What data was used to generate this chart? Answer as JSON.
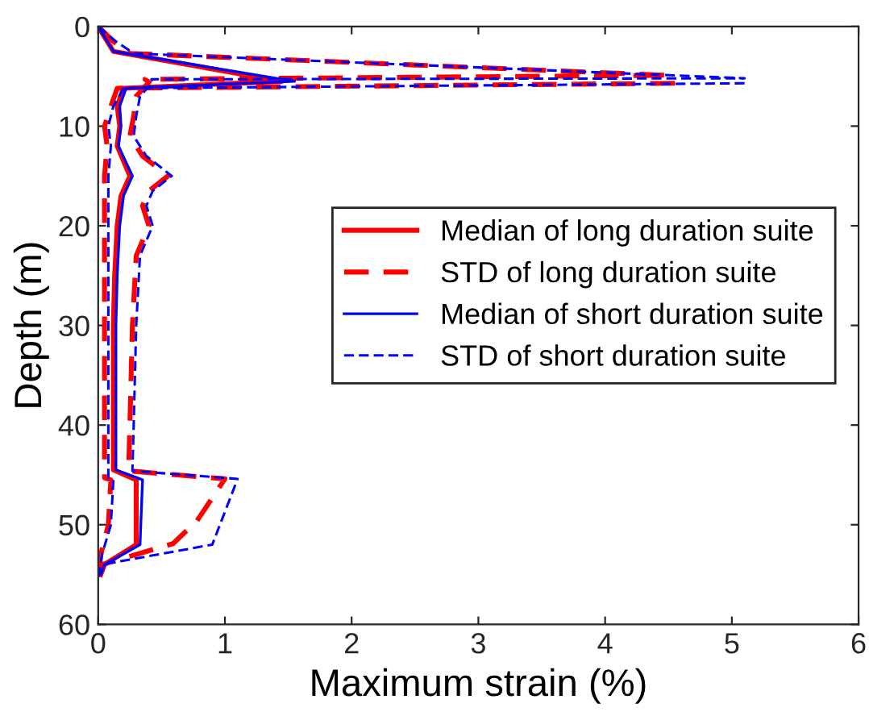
{
  "chart_data": {
    "type": "line",
    "xlabel": "Maximum strain (%)",
    "ylabel": "Depth (m)",
    "xlim": [
      0,
      6
    ],
    "ylim": [
      60,
      0
    ],
    "xticks": [
      0,
      1,
      2,
      3,
      4,
      5,
      6
    ],
    "yticks": [
      0,
      10,
      20,
      30,
      40,
      50,
      60
    ],
    "grid": false,
    "legend": "right",
    "series": [
      {
        "name": "Median of long duration suite",
        "color": "#ff0000",
        "line_style": "solid",
        "x": [
          0,
          0.12,
          1.45,
          0.2,
          0.15,
          0.17,
          0.15,
          0.25,
          0.18,
          0.15,
          0.13,
          0.12,
          0.12,
          0.12,
          0.12,
          0.3,
          0.3,
          0.05,
          0.02
        ],
        "values": [
          0,
          2.5,
          5.5,
          6.2,
          8,
          10,
          12,
          15,
          17,
          20,
          25,
          30,
          35,
          40,
          44.5,
          45.5,
          52,
          54,
          55
        ]
      },
      {
        "name": "STD of long duration suite",
        "color": "#ff0000",
        "line_style": "dashed",
        "x": [
          0,
          0.12,
          0.25,
          4.5,
          0.37,
          0.4,
          0.3,
          0.28,
          0.25,
          0.35,
          0.55,
          0.4,
          0.35,
          0.4,
          0.3,
          0.27,
          0.25,
          0.24,
          1.0,
          0.78,
          0.59,
          0.03,
          null,
          4.55,
          0.15,
          0.1,
          0.05,
          0.07,
          0.05,
          0.05,
          0.05,
          0.05,
          0.1,
          0.08,
          0.02,
          0
        ],
        "values": [
          0,
          1.5,
          2.7,
          4.9,
          5.3,
          5.6,
          7,
          9,
          11,
          13,
          15,
          16.5,
          18,
          20,
          23,
          30,
          40,
          44.6,
          45.4,
          49.6,
          51.9,
          54,
          null,
          5.7,
          6.2,
          8,
          10,
          12,
          15,
          30,
          45,
          45.3,
          45.5,
          50,
          53,
          55.5
        ]
      },
      {
        "name": "Median of short duration suite",
        "color": "#0000ff",
        "line_style": "solid",
        "x": [
          0,
          0.12,
          1.55,
          0.22,
          0.17,
          0.18,
          0.16,
          0.27,
          0.2,
          0.17,
          0.15,
          0.14,
          0.14,
          0.14,
          0.14,
          0.35,
          0.33,
          0.05,
          0.02
        ],
        "values": [
          0,
          2.5,
          5.5,
          6.2,
          8,
          10,
          12,
          15,
          17,
          20,
          25,
          30,
          35,
          40,
          44.5,
          45.5,
          52,
          54,
          55
        ]
      },
      {
        "name": "STD of short duration suite",
        "color": "#0000ff",
        "line_style": "dashed",
        "x": [
          0,
          0.14,
          0.28,
          5.1,
          0.42,
          0.43,
          0.33,
          0.3,
          0.28,
          0.38,
          0.58,
          0.43,
          0.38,
          0.43,
          0.33,
          0.3,
          0.28,
          0.27,
          1.1,
          0.9,
          0.03,
          null,
          5.1,
          0.2,
          0.12,
          0.08,
          0.1,
          0.08,
          0.08,
          0.08,
          0.08,
          0.12,
          0.1,
          0.03,
          0
        ],
        "values": [
          0,
          1.5,
          2.7,
          5.2,
          5.3,
          5.6,
          7,
          9,
          11,
          13,
          15,
          16.5,
          18,
          20,
          23,
          30,
          40,
          44.6,
          45.4,
          52,
          54,
          null,
          5.7,
          6.2,
          8,
          10,
          12,
          15,
          30,
          45,
          45.3,
          45.5,
          50,
          53,
          55.5
        ]
      }
    ]
  }
}
